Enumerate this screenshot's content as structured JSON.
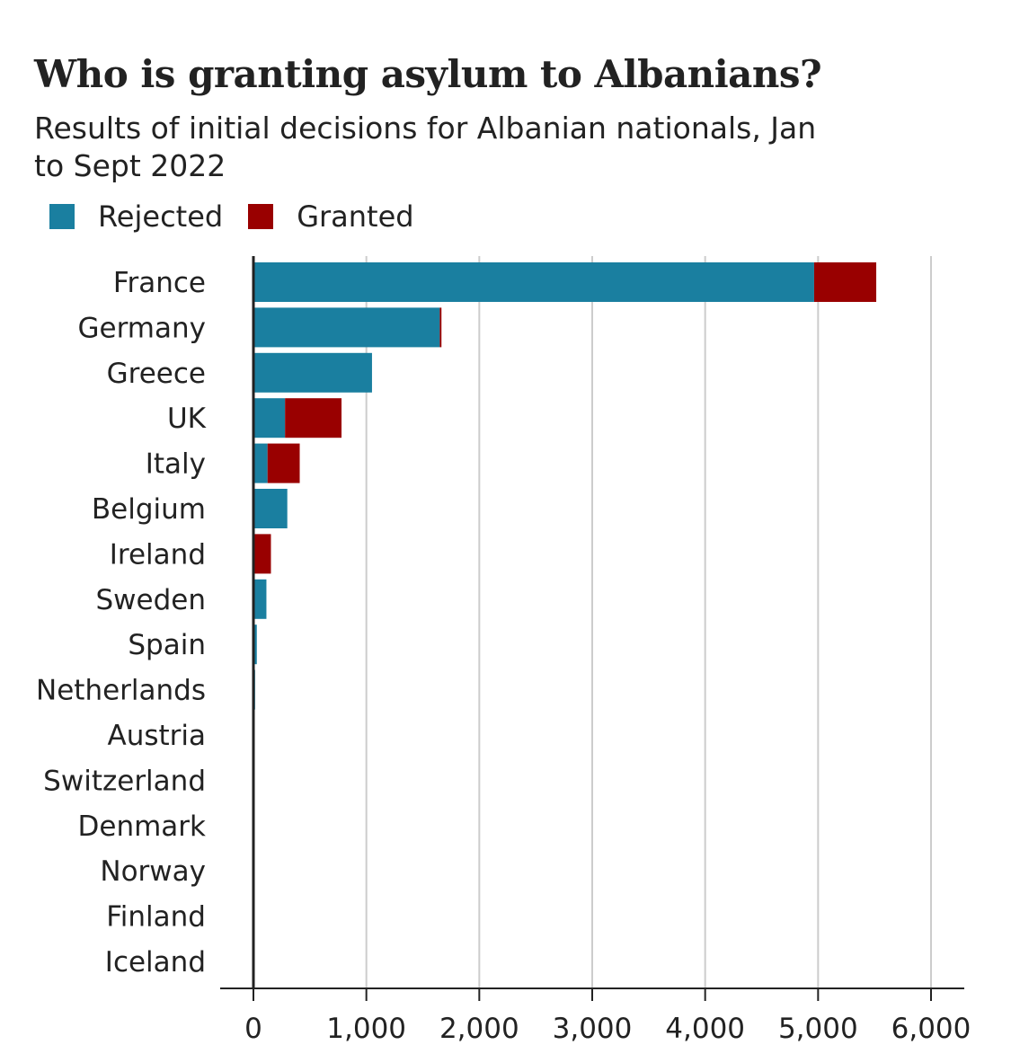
{
  "chart_data": {
    "type": "bar",
    "orientation": "horizontal",
    "stacked": true,
    "title": "Who is granting asylum to Albanians?",
    "subtitle": "Results of initial decisions for Albanian nationals, Jan to Sept 2022",
    "xlabel": "",
    "ylabel": "",
    "xlim": [
      0,
      6000
    ],
    "xticks": [
      "0",
      "1,000",
      "2,000",
      "3,000",
      "4,000",
      "5,000",
      "6,000"
    ],
    "xtick_values": [
      0,
      1000,
      2000,
      3000,
      4000,
      5000,
      6000
    ],
    "grid": true,
    "legend_position": "top-left",
    "categories": [
      "France",
      "Germany",
      "Greece",
      "UK",
      "Italy",
      "Belgium",
      "Ireland",
      "Sweden",
      "Spain",
      "Netherlands",
      "Austria",
      "Switzerland",
      "Denmark",
      "Norway",
      "Finland",
      "Iceland"
    ],
    "series": [
      {
        "name": "Rejected",
        "color": "#1a7fa0",
        "values": [
          4965,
          1650,
          1050,
          280,
          125,
          300,
          5,
          115,
          30,
          15,
          10,
          5,
          3,
          1,
          0,
          0
        ]
      },
      {
        "name": "Granted",
        "color": "#990000",
        "values": [
          550,
          15,
          0,
          500,
          285,
          0,
          150,
          0,
          0,
          0,
          0,
          0,
          0,
          0,
          0,
          0
        ]
      }
    ]
  }
}
